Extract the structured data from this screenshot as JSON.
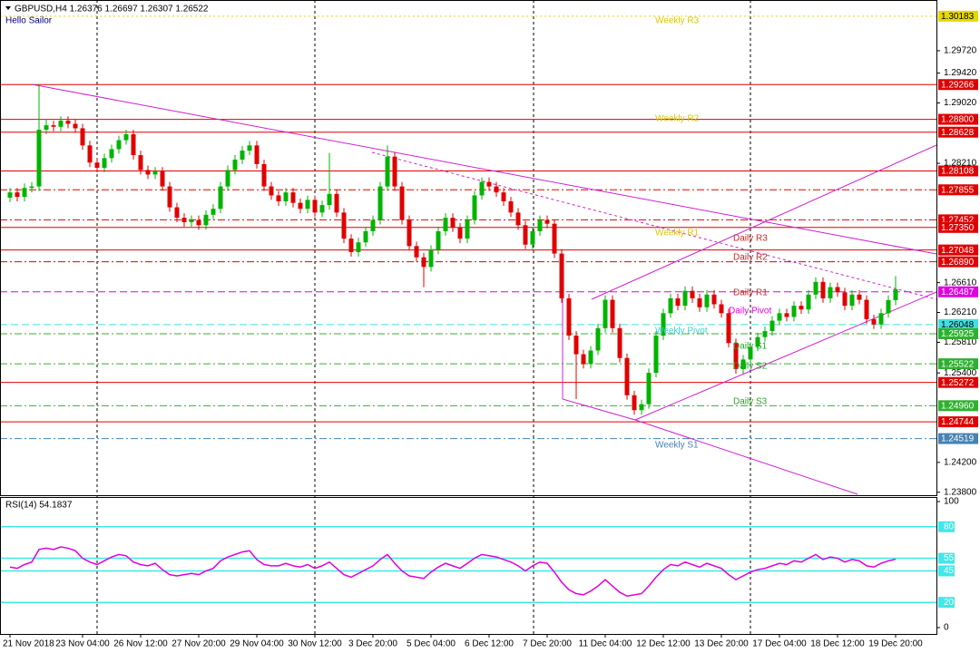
{
  "chart_data": {
    "type": "candlestick",
    "title": "GBPUSD,H4  1.26376 1.26697 1.26307 1.26522",
    "subtitle": "Hello Sailor",
    "categories": [
      "21 Nov 2018",
      null,
      null,
      null,
      null,
      null,
      null,
      null,
      null,
      null,
      "23 Nov 04:00",
      null,
      null,
      null,
      null,
      null,
      null,
      null,
      "26 Nov 12:00",
      null,
      null,
      null,
      null,
      null,
      null,
      null,
      "27 Nov 20:00",
      null,
      null,
      null,
      null,
      null,
      null,
      null,
      "29 Nov 04:00",
      null,
      null,
      null,
      null,
      null,
      null,
      null,
      "30 Nov 12:00",
      null,
      null,
      null,
      null,
      null,
      null,
      null,
      "3 Dec 20:00",
      null,
      null,
      null,
      null,
      null,
      null,
      null,
      "5 Dec 04:00",
      null,
      null,
      null,
      null,
      null,
      null,
      null,
      "6 Dec 12:00",
      null,
      null,
      null,
      null,
      null,
      null,
      null,
      "7 Dec 20:00",
      null,
      null,
      null,
      null,
      null,
      null,
      null,
      "11 Dec 04:00",
      null,
      null,
      null,
      null,
      null,
      null,
      null,
      "12 Dec 12:00",
      null,
      null,
      null,
      null,
      null,
      null,
      null,
      "13 Dec 20:00",
      null,
      null,
      null,
      null,
      null,
      null,
      null,
      "17 Dec 04:00",
      null,
      null,
      null,
      null,
      null,
      null,
      null,
      "18 Dec 12:00",
      null,
      null,
      null,
      null,
      null,
      null,
      null,
      "19 Dec 20:00"
    ],
    "open": [
      1.2775,
      1.2782,
      1.2776,
      1.2788,
      1.279,
      1.2866,
      1.2872,
      1.287,
      1.2878,
      1.2874,
      1.2868,
      1.2845,
      1.2822,
      1.2815,
      1.2828,
      1.284,
      1.2852,
      1.286,
      1.2832,
      1.2812,
      1.2806,
      1.281,
      1.279,
      1.2762,
      1.2748,
      1.2742,
      1.2745,
      1.2738,
      1.2752,
      1.276,
      1.279,
      1.2812,
      1.2826,
      1.2838,
      1.2845,
      1.282,
      1.279,
      1.2778,
      1.277,
      1.2782,
      1.2768,
      1.276,
      1.2772,
      1.2755,
      1.2765,
      1.278,
      1.2755,
      1.272,
      1.2702,
      1.2715,
      1.273,
      1.2745,
      1.279,
      1.283,
      1.279,
      1.2745,
      1.271,
      1.2695,
      1.2682,
      1.2705,
      1.273,
      1.2748,
      1.2735,
      1.272,
      1.2745,
      1.2778,
      1.2796,
      1.279,
      1.2782,
      1.277,
      1.2755,
      1.2738,
      1.2712,
      1.273,
      1.2745,
      1.274,
      1.27,
      1.264,
      1.259,
      1.2565,
      1.2552,
      1.257,
      1.26,
      1.2638,
      1.26,
      1.256,
      1.251,
      1.249,
      1.2498,
      1.254,
      1.259,
      1.262,
      1.264,
      1.263,
      1.265,
      1.264,
      1.2628,
      1.2645,
      1.2632,
      1.262,
      1.258,
      1.2545,
      1.2558,
      1.2575,
      1.2588,
      1.2596,
      1.261,
      1.262,
      1.2615,
      1.263,
      1.2625,
      1.2645,
      1.2662,
      1.264,
      1.2655,
      1.2648,
      1.263,
      1.2645,
      1.2638,
      1.2612,
      1.2605,
      1.262,
      1.26376
    ],
    "high": [
      1.2788,
      1.2788,
      1.2794,
      1.2796,
      1.2927,
      1.288,
      1.2878,
      1.2884,
      1.2884,
      1.288,
      1.2874,
      1.2851,
      1.2828,
      1.2834,
      1.2846,
      1.2858,
      1.2866,
      1.2866,
      1.2838,
      1.2818,
      1.2816,
      1.2816,
      1.2796,
      1.2768,
      1.2754,
      1.2751,
      1.2751,
      1.2758,
      1.2766,
      1.2796,
      1.2818,
      1.2832,
      1.2844,
      1.2851,
      1.2851,
      1.2826,
      1.2796,
      1.2784,
      1.2788,
      1.2788,
      1.2774,
      1.2778,
      1.2778,
      1.2771,
      1.2835,
      1.2786,
      1.2761,
      1.2726,
      1.2721,
      1.2736,
      1.2751,
      1.2796,
      1.2845,
      1.2836,
      1.2796,
      1.2751,
      1.2716,
      1.2701,
      1.2711,
      1.2736,
      1.2754,
      1.2754,
      1.2741,
      1.2751,
      1.2784,
      1.2802,
      1.2802,
      1.2796,
      1.2788,
      1.2776,
      1.2761,
      1.2744,
      1.2736,
      1.2751,
      1.2751,
      1.2746,
      1.2706,
      1.2646,
      1.2596,
      1.2571,
      1.2576,
      1.2606,
      1.2644,
      1.2644,
      1.2606,
      1.2566,
      1.2516,
      1.2504,
      1.2546,
      1.2596,
      1.2626,
      1.2646,
      1.2646,
      1.2656,
      1.2656,
      1.2646,
      1.2651,
      1.2651,
      1.2638,
      1.2626,
      1.2586,
      1.2564,
      1.2581,
      1.2594,
      1.2602,
      1.2616,
      1.2626,
      1.2626,
      1.2636,
      1.2636,
      1.2651,
      1.2668,
      1.2668,
      1.2661,
      1.2661,
      1.2654,
      1.2651,
      1.2651,
      1.2644,
      1.2618,
      1.2626,
      1.2644,
      1.26697
    ],
    "low": [
      1.2769,
      1.277,
      1.277,
      1.2782,
      1.2784,
      1.286,
      1.2864,
      1.2864,
      1.2868,
      1.2862,
      1.2839,
      1.2816,
      1.2809,
      1.2809,
      1.2822,
      1.2834,
      1.2846,
      1.2826,
      1.2806,
      1.28,
      1.28,
      1.2784,
      1.2756,
      1.2742,
      1.2736,
      1.2736,
      1.2732,
      1.2732,
      1.2746,
      1.2754,
      1.2784,
      1.2806,
      1.282,
      1.2832,
      1.2814,
      1.2784,
      1.2772,
      1.2764,
      1.2764,
      1.2762,
      1.2754,
      1.2754,
      1.2749,
      1.2749,
      1.2759,
      1.2749,
      1.2714,
      1.2696,
      1.2696,
      1.2709,
      1.2724,
      1.2739,
      1.2784,
      1.2784,
      1.2739,
      1.2704,
      1.2689,
      1.2655,
      1.2676,
      1.2699,
      1.2724,
      1.2729,
      1.2714,
      1.2714,
      1.2739,
      1.2772,
      1.2784,
      1.2776,
      1.2764,
      1.2749,
      1.2732,
      1.2706,
      1.2706,
      1.2724,
      1.2734,
      1.2694,
      1.2634,
      1.2584,
      1.2505,
      1.2546,
      1.2546,
      1.2564,
      1.2594,
      1.2594,
      1.2554,
      1.2504,
      1.2484,
      1.2484,
      1.2492,
      1.2534,
      1.2584,
      1.2614,
      1.2624,
      1.2624,
      1.2634,
      1.2622,
      1.2622,
      1.2626,
      1.2614,
      1.2574,
      1.2539,
      1.2539,
      1.2552,
      1.2569,
      1.2582,
      1.259,
      1.2604,
      1.2609,
      1.2609,
      1.2619,
      1.2619,
      1.2639,
      1.2634,
      1.2634,
      1.2642,
      1.2624,
      1.2624,
      1.2632,
      1.2606,
      1.2599,
      1.2599,
      1.2614,
      1.26307
    ],
    "close": [
      1.2782,
      1.2776,
      1.2788,
      1.279,
      1.2866,
      1.2872,
      1.287,
      1.2878,
      1.2874,
      1.2868,
      1.2845,
      1.2822,
      1.2815,
      1.2828,
      1.284,
      1.2852,
      1.286,
      1.2832,
      1.2812,
      1.2806,
      1.281,
      1.279,
      1.2762,
      1.2748,
      1.2742,
      1.2745,
      1.2738,
      1.2752,
      1.276,
      1.279,
      1.2812,
      1.2826,
      1.2838,
      1.2845,
      1.282,
      1.279,
      1.2778,
      1.277,
      1.2782,
      1.2768,
      1.276,
      1.2772,
      1.2755,
      1.2765,
      1.278,
      1.2755,
      1.272,
      1.2702,
      1.2715,
      1.273,
      1.2745,
      1.279,
      1.283,
      1.279,
      1.2745,
      1.271,
      1.2695,
      1.2682,
      1.2705,
      1.273,
      1.2748,
      1.2735,
      1.272,
      1.2745,
      1.2778,
      1.2796,
      1.279,
      1.2782,
      1.277,
      1.2755,
      1.2738,
      1.2712,
      1.273,
      1.2745,
      1.274,
      1.27,
      1.264,
      1.259,
      1.2565,
      1.2552,
      1.257,
      1.26,
      1.2638,
      1.26,
      1.256,
      1.251,
      1.249,
      1.2498,
      1.254,
      1.259,
      1.262,
      1.264,
      1.263,
      1.265,
      1.264,
      1.2628,
      1.2645,
      1.2632,
      1.262,
      1.258,
      1.2545,
      1.2558,
      1.2575,
      1.2588,
      1.2596,
      1.261,
      1.262,
      1.2615,
      1.263,
      1.2625,
      1.2645,
      1.2662,
      1.264,
      1.2655,
      1.2648,
      1.263,
      1.2645,
      1.2638,
      1.2612,
      1.2605,
      1.262,
      1.26376,
      1.26522
    ],
    "up_color": "#00b400",
    "down_color": "#e00000",
    "ylim": [
      1.2376,
      1.304
    ],
    "yticks": [
      {
        "value": 1.2972,
        "label": "1.29720"
      },
      {
        "value": 1.2942,
        "label": "1.29420"
      },
      {
        "value": 1.2902,
        "label": "1.29020"
      },
      {
        "value": 1.2821,
        "label": "1.28210"
      },
      {
        "value": 1.2661,
        "label": "1.26610"
      },
      {
        "value": 1.2621,
        "label": "1.26210"
      },
      {
        "value": 1.2581,
        "label": "1.25810"
      },
      {
        "value": 1.254,
        "label": "1.25400"
      },
      {
        "value": 1.242,
        "label": "1.24200"
      },
      {
        "value": 1.238,
        "label": "1.23800"
      }
    ],
    "levels": [
      {
        "value": 1.30183,
        "label": "1.30183",
        "color": "#e6d800",
        "style": "dot"
      },
      {
        "value": 1.29266,
        "label": "1.29266",
        "color": "#e00000",
        "style": "solid"
      },
      {
        "value": 1.288,
        "label": "1.28800",
        "color": "#e00000",
        "style": "solid"
      },
      {
        "value": 1.28628,
        "label": "1.28628",
        "color": "#e00000",
        "style": "solid"
      },
      {
        "value": 1.28108,
        "label": "1.28108",
        "color": "#e00000",
        "style": "solid"
      },
      {
        "value": 1.27855,
        "label": "1.27855",
        "color": "#e00000",
        "style": "dashdot"
      },
      {
        "value": 1.27452,
        "label": "1.27452",
        "color": "#e00000",
        "style": "dashdot"
      },
      {
        "value": 1.2735,
        "label": "1.27350",
        "color": "#e00000",
        "style": "solid"
      },
      {
        "value": 1.27048,
        "label": "1.27048",
        "color": "#e00000",
        "style": "solid"
      },
      {
        "value": 1.2689,
        "label": "1.26890",
        "color": "#e00000",
        "style": "dashdot"
      },
      {
        "value": 1.26487,
        "label": "1.26487",
        "color": "#e000e0",
        "style": "dash"
      },
      {
        "value": 1.26048,
        "label": "1.26048",
        "color": "#40e0e0",
        "style": "dash"
      },
      {
        "value": 1.25925,
        "label": "1.25925",
        "color": "#30b030",
        "style": "dashdot"
      },
      {
        "value": 1.25522,
        "label": "1.25522",
        "color": "#30b030",
        "style": "dashdot"
      },
      {
        "value": 1.25272,
        "label": "1.25272",
        "color": "#e00000",
        "style": "solid"
      },
      {
        "value": 1.2496,
        "label": "1.24960",
        "color": "#30b030",
        "style": "dashdot"
      },
      {
        "value": 1.24744,
        "label": "1.24744",
        "color": "#e00000",
        "style": "solid"
      },
      {
        "value": 1.24519,
        "label": "1.24519",
        "color": "#4682b4",
        "style": "dashdot"
      }
    ],
    "annotations": [
      "Weekly R3",
      "Weekly R2",
      "Weekly R1",
      "Daily R3",
      "Daily R2",
      "Daily R1",
      "Daily Pivot",
      "Weekly Pivot",
      "Daily S1",
      "Daily S2",
      "Daily S3",
      "Weekly S1"
    ],
    "rsi": {
      "title": "RSI(14) 54.1837",
      "color": "#e000e0",
      "level_color": "#40e8e8",
      "ylim": [
        0,
        100
      ],
      "yticks": [
        100,
        80,
        55,
        45,
        20,
        0
      ],
      "values": [
        48,
        47,
        50,
        52,
        62,
        63,
        62,
        64,
        63,
        61,
        55,
        52,
        50,
        53,
        56,
        58,
        57,
        52,
        50,
        49,
        51,
        46,
        42,
        41,
        42,
        43,
        42,
        45,
        47,
        53,
        56,
        58,
        60,
        61,
        54,
        50,
        49,
        49,
        51,
        49,
        48,
        50,
        47,
        49,
        52,
        47,
        42,
        40,
        43,
        46,
        49,
        54,
        58,
        51,
        45,
        41,
        40,
        39,
        44,
        48,
        51,
        49,
        47,
        51,
        55,
        58,
        57,
        56,
        54,
        52,
        49,
        45,
        49,
        52,
        51,
        44,
        36,
        30,
        27,
        26,
        29,
        33,
        38,
        33,
        28,
        25,
        26,
        27,
        33,
        40,
        46,
        50,
        49,
        52,
        50,
        48,
        51,
        49,
        47,
        42,
        38,
        41,
        44,
        46,
        47,
        49,
        51,
        50,
        53,
        52,
        55,
        58,
        54,
        56,
        55,
        52,
        54,
        53,
        49,
        48,
        51,
        53,
        54.1837
      ]
    }
  }
}
